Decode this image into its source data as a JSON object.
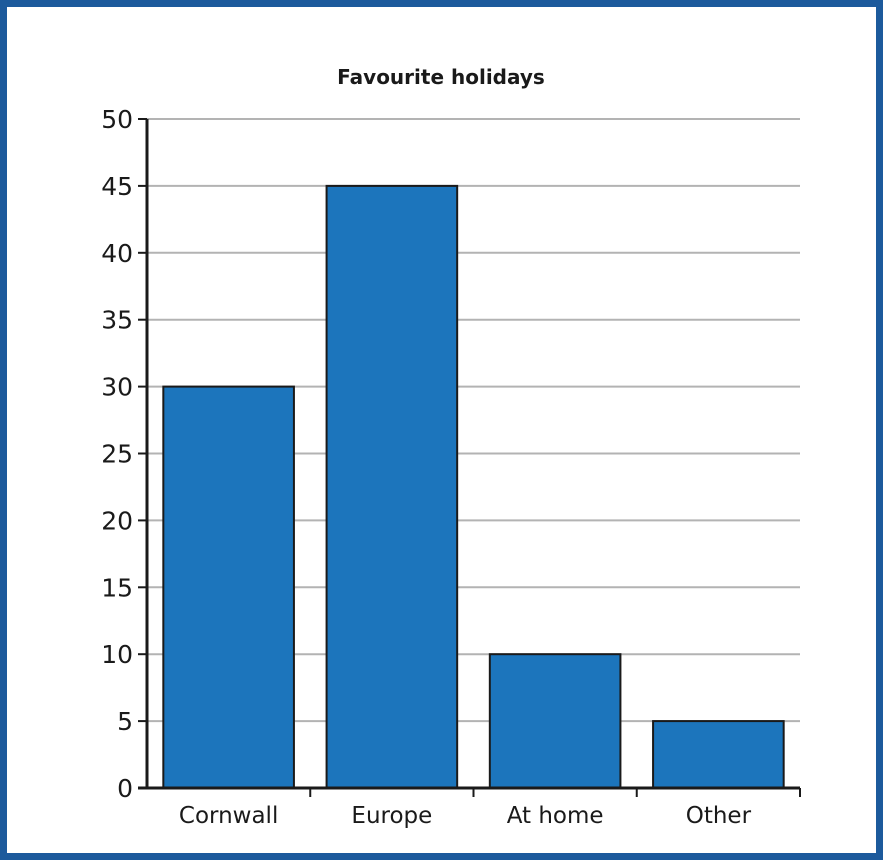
{
  "chart_data": {
    "type": "bar",
    "title": "Favourite holidays",
    "xlabel": "",
    "ylabel": "",
    "categories": [
      "Cornwall",
      "Europe",
      "At home",
      "Other"
    ],
    "values": [
      30,
      45,
      10,
      5
    ],
    "ylim": [
      0,
      50
    ],
    "yticks": [
      "0",
      "5",
      "10",
      "15",
      "20",
      "25",
      "30",
      "35",
      "40",
      "45",
      "50"
    ],
    "grid": true,
    "bar_color": "#1c75bc",
    "frame_color": "#1c5a9c"
  }
}
